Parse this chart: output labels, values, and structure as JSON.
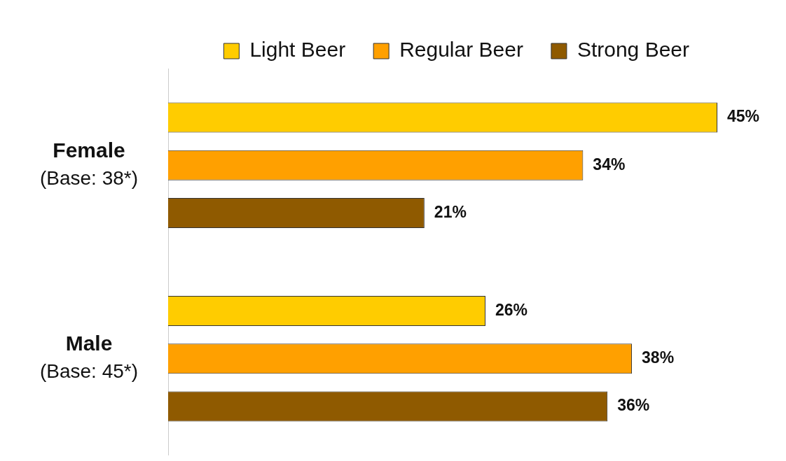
{
  "chart_data": {
    "type": "bar",
    "orientation": "horizontal",
    "categories": [
      "Female\n(Base: 38*)",
      "Male\n(Base: 45*)"
    ],
    "series": [
      {
        "name": "Light Beer",
        "color": "#ffcc00",
        "values": [
          45,
          26
        ],
        "value_labels": [
          "45%",
          "26%"
        ]
      },
      {
        "name": "Regular Beer",
        "color": "#ffa000",
        "values": [
          34,
          38
        ],
        "value_labels": [
          "34%",
          "38%"
        ]
      },
      {
        "name": "Strong Beer",
        "color": "#8f5a00",
        "values": [
          21,
          36
        ],
        "value_labels": [
          "21%",
          "36%"
        ]
      }
    ],
    "legend": "top",
    "grid": false
  }
}
